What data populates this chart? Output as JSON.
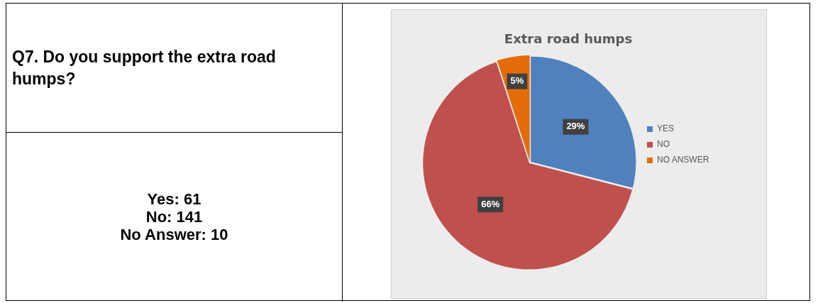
{
  "chart_data": [
    {
      "type": "other",
      "title": "Q7. Do you support the extra road humps?",
      "annotations": [
        "Yes: 61",
        "No: 141",
        "No Answer: 10"
      ]
    },
    {
      "type": "pie",
      "title": "Extra road humps",
      "categories": [
        "YES",
        "NO",
        "NO ANSWER"
      ],
      "values": [
        29,
        66,
        5
      ],
      "colors": [
        "#4f81bd",
        "#c0504d",
        "#e46c0a"
      ],
      "value_labels": [
        "29%",
        "66%",
        "5%"
      ],
      "legend": "right"
    }
  ]
}
